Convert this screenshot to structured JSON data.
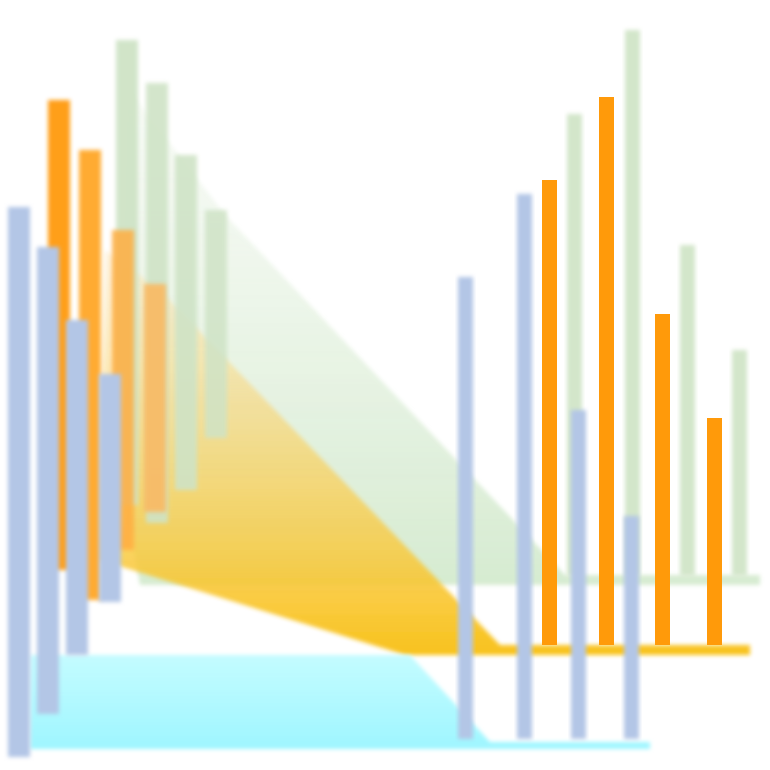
{
  "figure": {
    "kind": "decorative-bar-graphic",
    "colors": {
      "blue": "#b3c6e6",
      "orange": "#ff9a0a",
      "green": "#cfe3c6",
      "cyan": "#9ff7ff",
      "orange_glow": "#f7b81a"
    }
  }
}
